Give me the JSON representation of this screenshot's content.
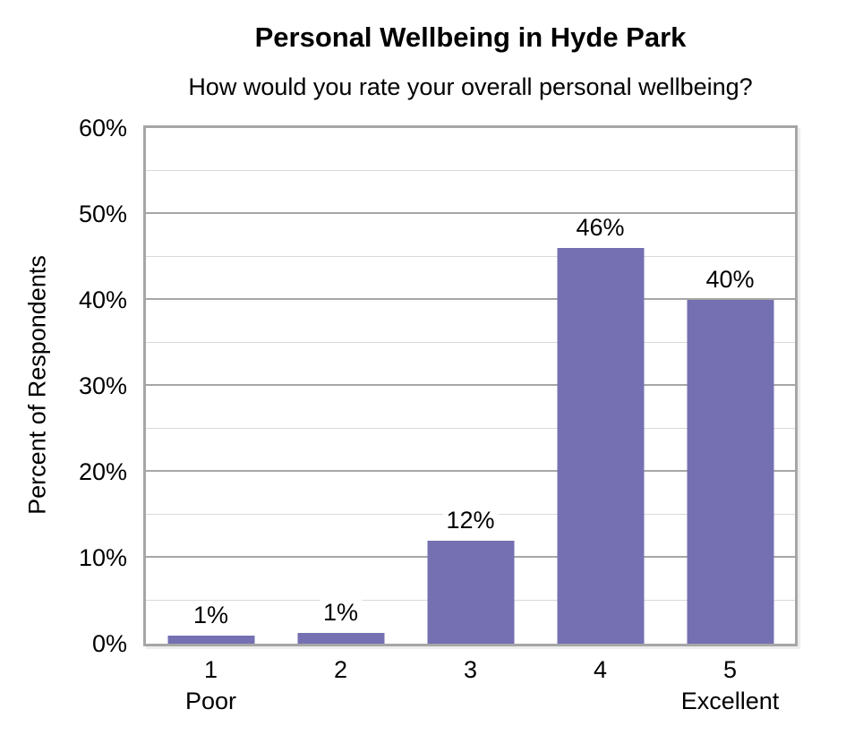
{
  "chart_data": {
    "type": "bar",
    "title": "Personal Wellbeing in Hyde Park",
    "subtitle": "How would you rate your overall personal wellbeing?",
    "categories": [
      "1",
      "2",
      "3",
      "4",
      "5"
    ],
    "category_sublabels": [
      "Poor",
      "",
      "",
      "",
      "Excellent"
    ],
    "values": [
      1,
      1,
      12,
      46,
      40
    ],
    "values_precise": [
      0.9,
      1.3,
      12,
      46,
      40
    ],
    "data_labels": [
      "1%",
      "1%",
      "12%",
      "46%",
      "40%"
    ],
    "xlabel": "",
    "ylabel": "Percent of Respondents",
    "ylim": [
      0,
      60
    ],
    "y_major_tick": 10,
    "y_minor_tick": 5,
    "y_tick_labels": [
      "0%",
      "10%",
      "20%",
      "30%",
      "40%",
      "50%",
      "60%"
    ],
    "grid": "on",
    "legend": "none",
    "colors": {
      "bar_fill": "#7470b2",
      "major_gridline": "#a6a6a6",
      "minor_gridline": "#d9d9d9",
      "plot_border": "#a6a6a6",
      "text": "#000000"
    }
  }
}
